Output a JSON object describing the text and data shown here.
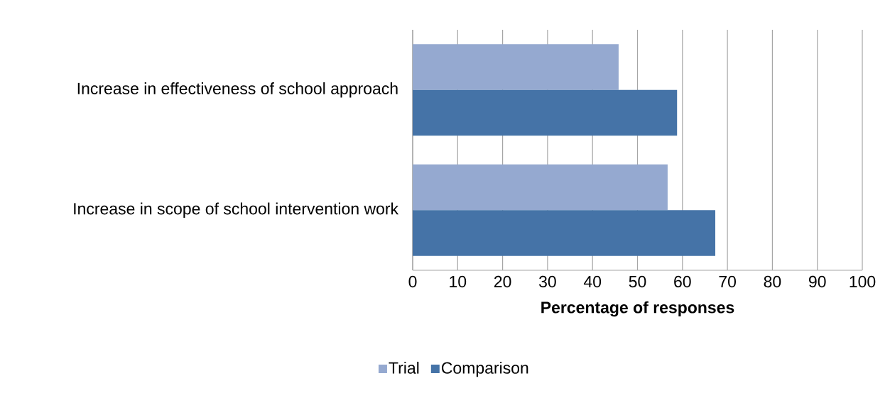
{
  "chart_data": {
    "type": "bar",
    "orientation": "horizontal",
    "xlabel": "Percentage of responses",
    "categories": [
      "Increase in effectiveness of school approach",
      "Increase in scope of school intervention work"
    ],
    "series": [
      {
        "name": "Trial",
        "color": "#95a9d0",
        "values": [
          45.8,
          56.7
        ]
      },
      {
        "name": "Comparison",
        "color": "#4573a7",
        "values": [
          58.8,
          67.3
        ]
      }
    ],
    "xlim": [
      0,
      100
    ],
    "xticks": [
      0,
      10,
      20,
      30,
      40,
      50,
      60,
      70,
      80,
      90,
      100
    ],
    "grid": "x",
    "legend": "bottom"
  }
}
